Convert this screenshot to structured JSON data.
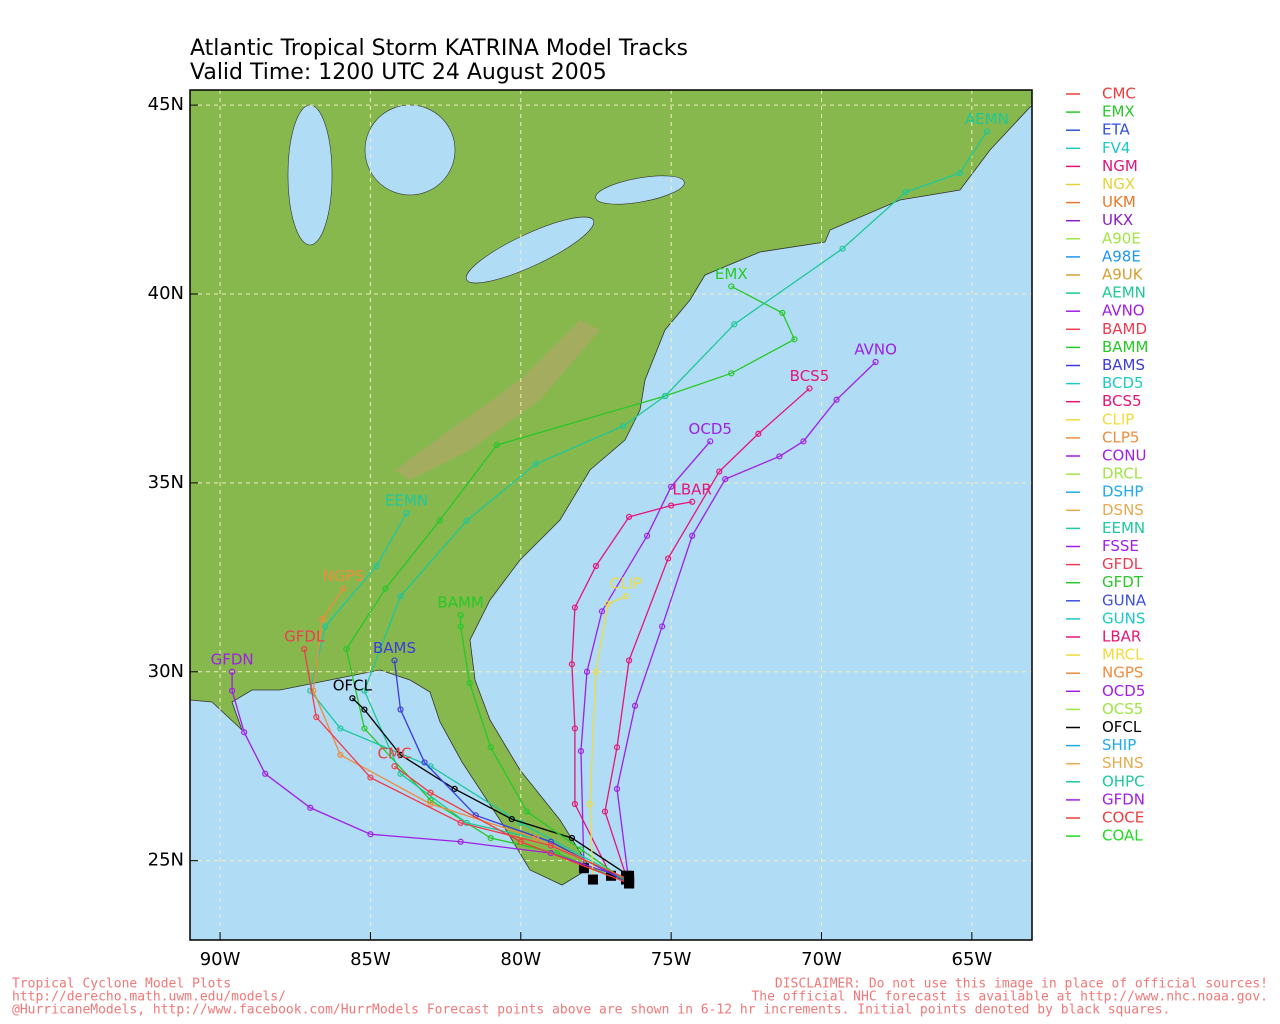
{
  "chart_data": {
    "type": "track-map",
    "title": [
      "Atlantic Tropical Storm KATRINA Model Tracks",
      "Valid Time: 1200 UTC 24 August 2005"
    ],
    "xlim": [
      -91,
      -63
    ],
    "ylim": [
      22.9,
      45.4
    ],
    "xticks": [
      {
        "value": -90,
        "label": "90W"
      },
      {
        "value": -85,
        "label": "85W"
      },
      {
        "value": -80,
        "label": "80W"
      },
      {
        "value": -75,
        "label": "75W"
      },
      {
        "value": -70,
        "label": "70W"
      },
      {
        "value": -65,
        "label": "65W"
      }
    ],
    "yticks": [
      {
        "value": 25,
        "label": "25N"
      },
      {
        "value": 30,
        "label": "30N"
      },
      {
        "value": 35,
        "label": "35N"
      },
      {
        "value": 40,
        "label": "40N"
      },
      {
        "value": 45,
        "label": "45N"
      }
    ],
    "grid": true,
    "legend": [
      {
        "name": "CMC",
        "color": "#f03c3c"
      },
      {
        "name": "EMX",
        "color": "#28c828"
      },
      {
        "name": "ETA",
        "color": "#3250dc"
      },
      {
        "name": "FV4",
        "color": "#1ec8c8"
      },
      {
        "name": "NGM",
        "color": "#e0147a"
      },
      {
        "name": "NGX",
        "color": "#e6d23c"
      },
      {
        "name": "UKM",
        "color": "#e67828"
      },
      {
        "name": "UKX",
        "color": "#8c1ec8"
      },
      {
        "name": "A90E",
        "color": "#a0e646"
      },
      {
        "name": "A98E",
        "color": "#1e96f0"
      },
      {
        "name": "A9UK",
        "color": "#d2a032"
      },
      {
        "name": "AEMN",
        "color": "#1ec896"
      },
      {
        "name": "AVNO",
        "color": "#a01ee6"
      },
      {
        "name": "BAMD",
        "color": "#f03c50"
      },
      {
        "name": "BAMM",
        "color": "#28c828"
      },
      {
        "name": "BAMS",
        "color": "#3c3cdc"
      },
      {
        "name": "BCD5",
        "color": "#1ec8c8"
      },
      {
        "name": "BCS5",
        "color": "#e61478"
      },
      {
        "name": "CLIP",
        "color": "#f0dc3c"
      },
      {
        "name": "CLP5",
        "color": "#f08c3c"
      },
      {
        "name": "CONU",
        "color": "#a01ee6"
      },
      {
        "name": "DRCL",
        "color": "#a0e646"
      },
      {
        "name": "DSHP",
        "color": "#1eaaf0"
      },
      {
        "name": "DSNS",
        "color": "#e6aa50"
      },
      {
        "name": "EEMN",
        "color": "#1ec8a0"
      },
      {
        "name": "FSSE",
        "color": "#a01ee6"
      },
      {
        "name": "GFDL",
        "color": "#f03c50"
      },
      {
        "name": "GFDT",
        "color": "#28c828"
      },
      {
        "name": "GUNA",
        "color": "#3c50dc"
      },
      {
        "name": "GUNS",
        "color": "#1ec8c8"
      },
      {
        "name": "LBAR",
        "color": "#e6147a"
      },
      {
        "name": "MRCL",
        "color": "#f0dc3c"
      },
      {
        "name": "NGPS",
        "color": "#f08c3c"
      },
      {
        "name": "OCD5",
        "color": "#a01ee6"
      },
      {
        "name": "OCS5",
        "color": "#a0e646"
      },
      {
        "name": "OFCL",
        "color": "#000000"
      },
      {
        "name": "SHIP",
        "color": "#1eaaf0"
      },
      {
        "name": "SHNS",
        "color": "#e6aa50"
      },
      {
        "name": "OHPC",
        "color": "#1ec8a0"
      },
      {
        "name": "GFDN",
        "color": "#a01ee6"
      },
      {
        "name": "COCE",
        "color": "#f03c3c"
      },
      {
        "name": "COAL",
        "color": "#1edc1e"
      }
    ],
    "tracks": [
      {
        "name": "EMX",
        "lon": [
          -76.4,
          -78.8,
          -81,
          -83,
          -85.2,
          -85.8,
          -84.5,
          -82.7,
          -80.8,
          -75.2,
          -73,
          -70.9,
          -71.3,
          -73
        ],
        "lat": [
          24.4,
          25.2,
          25.6,
          26.6,
          28.5,
          30.6,
          32.2,
          34,
          36,
          37.3,
          37.9,
          38.8,
          39.5,
          40.2
        ]
      },
      {
        "name": "AEMN",
        "lon": [
          -76.4,
          -79,
          -81.8,
          -84,
          -85.2,
          -84,
          -81.8,
          -79.5,
          -76.6,
          -75.2,
          -72.9,
          -69.3,
          -67.2,
          -65.4,
          -64.5
        ],
        "lat": [
          24.4,
          25.5,
          26,
          27.3,
          29.5,
          32,
          34,
          35.5,
          36.5,
          37.3,
          39.2,
          41.2,
          42.7,
          43.2,
          44.3
        ]
      },
      {
        "name": "AVNO",
        "lon": [
          -76.4,
          -76.8,
          -76.2,
          -75.3,
          -74.3,
          -73.2,
          -71.4,
          -70.6,
          -69.5,
          -68.2
        ],
        "lat": [
          24.4,
          26.9,
          29.1,
          31.2,
          33.6,
          35.1,
          35.7,
          36.1,
          37.2,
          38.2
        ]
      },
      {
        "name": "BCS5",
        "lon": [
          -76.5,
          -77.2,
          -76.8,
          -76.4,
          -75.1,
          -73.4,
          -72.1,
          -70.4
        ],
        "lat": [
          24.6,
          26.3,
          28,
          30.3,
          33,
          35.3,
          36.3,
          37.5
        ]
      },
      {
        "name": "OCD5",
        "lon": [
          -77.9,
          -78,
          -77.8,
          -77.3,
          -75.8,
          -75,
          -73.7
        ],
        "lat": [
          24.8,
          27.9,
          30,
          31.6,
          33.6,
          34.9,
          36.1
        ]
      },
      {
        "name": "LBAR",
        "lon": [
          -77,
          -78.2,
          -78.2,
          -78.3,
          -78.2,
          -77.5,
          -76.4,
          -75,
          -74.3
        ],
        "lat": [
          24.6,
          26.5,
          28.5,
          30.2,
          31.7,
          32.8,
          34.1,
          34.4,
          34.5
        ]
      },
      {
        "name": "EEMN",
        "lon": [
          -76.5,
          -80,
          -83,
          -86,
          -87,
          -86.5,
          -84.8,
          -83.8
        ],
        "lat": [
          24.5,
          26,
          27.5,
          28.5,
          29.5,
          31.2,
          32.8,
          34.2
        ]
      },
      {
        "name": "GFDN",
        "lon": [
          -76.4,
          -79,
          -82,
          -85,
          -87,
          -88.5,
          -89.2,
          -89.6,
          -89.6
        ],
        "lat": [
          24.5,
          25.2,
          25.5,
          25.7,
          26.4,
          27.3,
          28.4,
          29.5,
          30
        ]
      },
      {
        "name": "OFCL",
        "lon": [
          -76.4,
          -78.3,
          -80.3,
          -82.2,
          -84,
          -85.2,
          -85.6
        ],
        "lat": [
          24.6,
          25.6,
          26.1,
          26.9,
          27.8,
          29,
          29.3
        ]
      },
      {
        "name": "BAMM",
        "lon": [
          -76.4,
          -78,
          -79.8,
          -81,
          -81.7,
          -82,
          -82
        ],
        "lat": [
          24.4,
          25.3,
          26.3,
          28,
          29.7,
          31.2,
          31.5
        ]
      },
      {
        "name": "BAMS",
        "lon": [
          -76.4,
          -79,
          -81.5,
          -83.2,
          -84,
          -84.2
        ],
        "lat": [
          24.4,
          25.5,
          26.2,
          27.6,
          29,
          30.3
        ]
      },
      {
        "name": "CLIP",
        "lon": [
          -77.6,
          -77.7,
          -77.5,
          -77.1,
          -76.5
        ],
        "lat": [
          24.5,
          26.5,
          30,
          31.8,
          32
        ]
      },
      {
        "name": "NGPS",
        "lon": [
          -76.4,
          -79.5,
          -83,
          -86,
          -86.9,
          -86.6,
          -85.9
        ],
        "lat": [
          24.5,
          25.6,
          26.5,
          27.8,
          29.5,
          31.4,
          32.2
        ]
      },
      {
        "name": "GFDL",
        "lon": [
          -76.4,
          -79,
          -82,
          -85,
          -86.8,
          -87.2
        ],
        "lat": [
          24.5,
          25.4,
          26,
          27.2,
          28.8,
          30.6
        ]
      },
      {
        "name": "CMC",
        "lon": [
          -76.4,
          -80,
          -83,
          -84.2
        ],
        "lat": [
          24.4,
          25.5,
          26.8,
          27.5
        ]
      }
    ],
    "footer_left": [
      "Tropical Cyclone Model Plots",
      "http://derecho.math.uwm.edu/models/"
    ],
    "footer_right": [
      "DISCLAIMER: Do not use this image in place of official sources!",
      "The official NHC forecast is available at http://www.nhc.noaa.gov."
    ],
    "footer_bottom": "@HurricaneModels, http://www.facebook.com/HurrModels  Forecast points above are shown in 6-12 hr increments. Initial points denoted by black squares."
  }
}
